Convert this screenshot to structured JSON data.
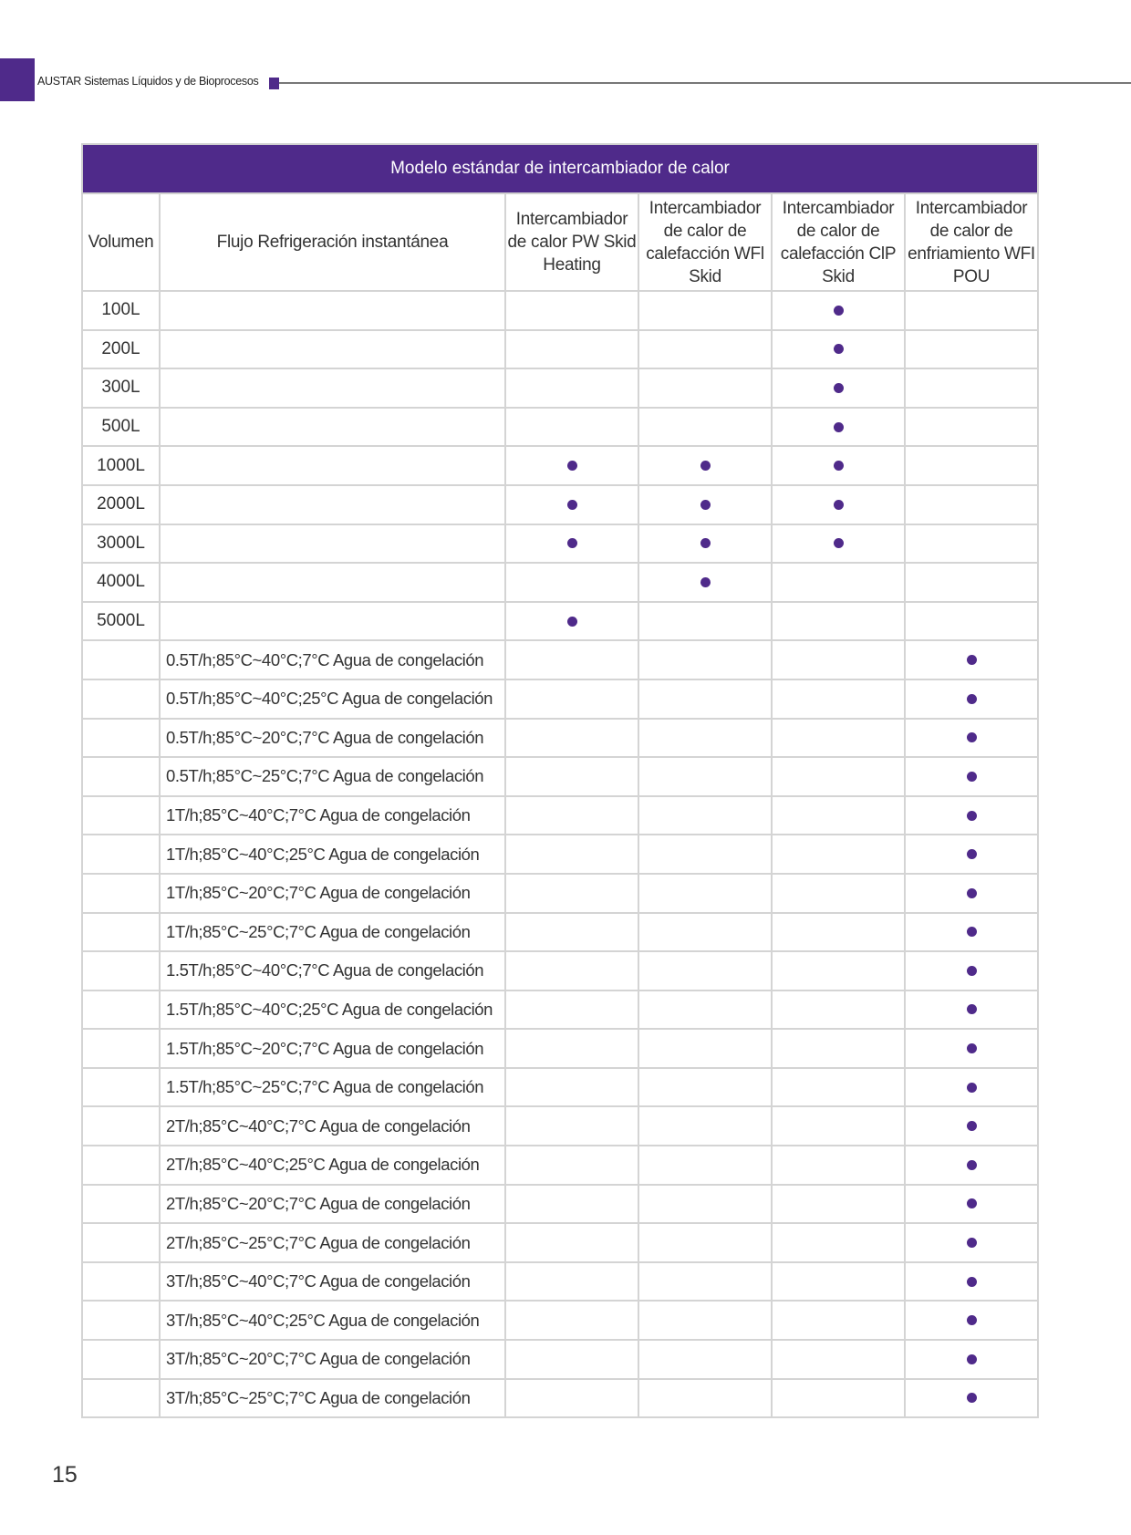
{
  "header": {
    "brand": "AUSTAR Sistemas Líquidos y de Bioprocesos"
  },
  "colors": {
    "accent": "#4f2a8a",
    "grid": "#d4d4d4"
  },
  "table": {
    "title": "Modelo estándar de intercambiador de calor",
    "columns": [
      "Volumen",
      "Flujo Refrigeración instantánea",
      "Intercambiador de calor PW Skid Heating",
      "Intercambiador de calor de calefacción WFl Skid",
      "Intercambiador de calor de calefacción ClP Skid",
      "Intercambiador de calor de enfriamiento WFI POU"
    ],
    "mark_icon": "filled-circle",
    "rows": [
      {
        "volume": "100L",
        "flow": "",
        "marks": [
          false,
          false,
          true,
          false
        ]
      },
      {
        "volume": "200L",
        "flow": "",
        "marks": [
          false,
          false,
          true,
          false
        ]
      },
      {
        "volume": "300L",
        "flow": "",
        "marks": [
          false,
          false,
          true,
          false
        ]
      },
      {
        "volume": "500L",
        "flow": "",
        "marks": [
          false,
          false,
          true,
          false
        ]
      },
      {
        "volume": "1000L",
        "flow": "",
        "marks": [
          true,
          true,
          true,
          false
        ]
      },
      {
        "volume": "2000L",
        "flow": "",
        "marks": [
          true,
          true,
          true,
          false
        ]
      },
      {
        "volume": "3000L",
        "flow": "",
        "marks": [
          true,
          true,
          true,
          false
        ]
      },
      {
        "volume": "4000L",
        "flow": "",
        "marks": [
          false,
          true,
          false,
          false
        ]
      },
      {
        "volume": "5000L",
        "flow": "",
        "marks": [
          true,
          false,
          false,
          false
        ]
      },
      {
        "volume": "",
        "flow": "0.5T/h;85°C~40°C;7°C Agua de congelación",
        "marks": [
          false,
          false,
          false,
          true
        ]
      },
      {
        "volume": "",
        "flow": "0.5T/h;85°C~40°C;25°C Agua de congelación",
        "marks": [
          false,
          false,
          false,
          true
        ]
      },
      {
        "volume": "",
        "flow": "0.5T/h;85°C~20°C;7°C Agua de congelación",
        "marks": [
          false,
          false,
          false,
          true
        ]
      },
      {
        "volume": "",
        "flow": "0.5T/h;85°C~25°C;7°C Agua de congelación",
        "marks": [
          false,
          false,
          false,
          true
        ]
      },
      {
        "volume": "",
        "flow": "1T/h;85°C~40°C;7°C Agua de congelación",
        "marks": [
          false,
          false,
          false,
          true
        ]
      },
      {
        "volume": "",
        "flow": "1T/h;85°C~40°C;25°C Agua de congelación",
        "marks": [
          false,
          false,
          false,
          true
        ]
      },
      {
        "volume": "",
        "flow": "1T/h;85°C~20°C;7°C Agua de congelación",
        "marks": [
          false,
          false,
          false,
          true
        ]
      },
      {
        "volume": "",
        "flow": "1T/h;85°C~25°C;7°C Agua de congelación",
        "marks": [
          false,
          false,
          false,
          true
        ]
      },
      {
        "volume": "",
        "flow": "1.5T/h;85°C~40°C;7°C Agua de congelación",
        "marks": [
          false,
          false,
          false,
          true
        ]
      },
      {
        "volume": "",
        "flow": "1.5T/h;85°C~40°C;25°C Agua de congelación",
        "marks": [
          false,
          false,
          false,
          true
        ]
      },
      {
        "volume": "",
        "flow": "1.5T/h;85°C~20°C;7°C Agua de congelación",
        "marks": [
          false,
          false,
          false,
          true
        ]
      },
      {
        "volume": "",
        "flow": "1.5T/h;85°C~25°C;7°C Agua de congelación",
        "marks": [
          false,
          false,
          false,
          true
        ]
      },
      {
        "volume": "",
        "flow": "2T/h;85°C~40°C;7°C Agua de congelación",
        "marks": [
          false,
          false,
          false,
          true
        ]
      },
      {
        "volume": "",
        "flow": "2T/h;85°C~40°C;25°C Agua de congelación",
        "marks": [
          false,
          false,
          false,
          true
        ]
      },
      {
        "volume": "",
        "flow": "2T/h;85°C~20°C;7°C Agua de congelación",
        "marks": [
          false,
          false,
          false,
          true
        ]
      },
      {
        "volume": "",
        "flow": "2T/h;85°C~25°C;7°C Agua de congelación",
        "marks": [
          false,
          false,
          false,
          true
        ]
      },
      {
        "volume": "",
        "flow": "3T/h;85°C~40°C;7°C Agua de congelación",
        "marks": [
          false,
          false,
          false,
          true
        ]
      },
      {
        "volume": "",
        "flow": "3T/h;85°C~40°C;25°C Agua de congelación",
        "marks": [
          false,
          false,
          false,
          true
        ]
      },
      {
        "volume": "",
        "flow": "3T/h;85°C~20°C;7°C Agua de congelación",
        "marks": [
          false,
          false,
          false,
          true
        ]
      },
      {
        "volume": "",
        "flow": "3T/h;85°C~25°C;7°C Agua de congelación",
        "marks": [
          false,
          false,
          false,
          true
        ]
      }
    ]
  },
  "footer": {
    "page_number": "15"
  }
}
